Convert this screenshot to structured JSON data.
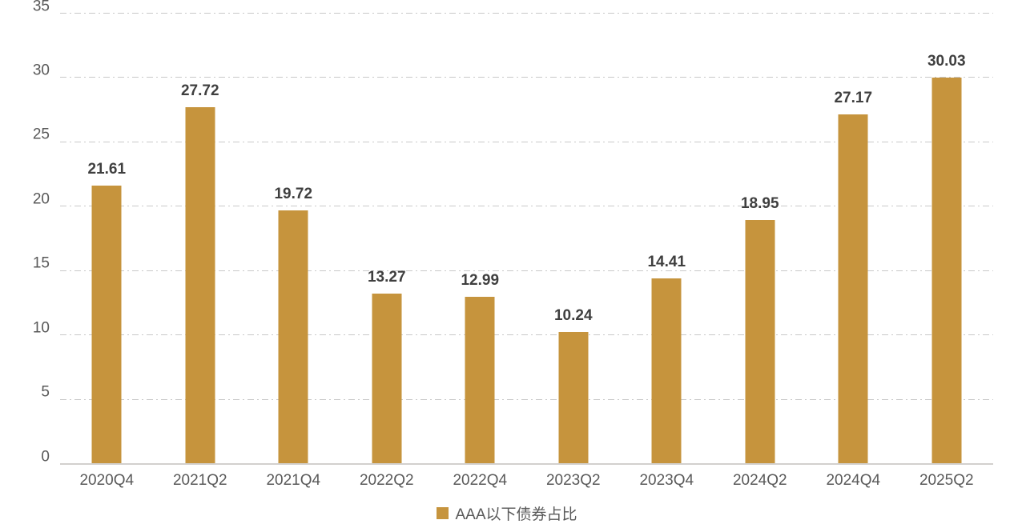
{
  "chart_data": {
    "type": "bar",
    "categories": [
      "2020Q4",
      "2021Q2",
      "2021Q4",
      "2022Q2",
      "2022Q4",
      "2023Q2",
      "2023Q4",
      "2024Q2",
      "2024Q4",
      "2025Q2"
    ],
    "values": [
      21.61,
      27.72,
      19.72,
      13.27,
      12.99,
      10.24,
      14.41,
      18.95,
      27.17,
      30.03
    ],
    "value_labels": [
      "21.61",
      "27.72",
      "19.72",
      "13.27",
      "12.99",
      "10.24",
      "14.41",
      "18.95",
      "27.17",
      "30.03"
    ],
    "title": "",
    "xlabel": "",
    "ylabel": "",
    "ylim": [
      0,
      35
    ],
    "yticks": [
      0,
      5,
      10,
      15,
      20,
      25,
      30,
      35
    ],
    "grid": "horizontal dash-dot",
    "legend": "AAA以下债券占比",
    "legend_position": "bottom-center",
    "colors": {
      "bar": "#C6943D",
      "axis_text": "#595959",
      "value_label_text": "#3F3F3F",
      "gridline": "#C9C9C9",
      "baseline": "#D2D0CE"
    }
  }
}
